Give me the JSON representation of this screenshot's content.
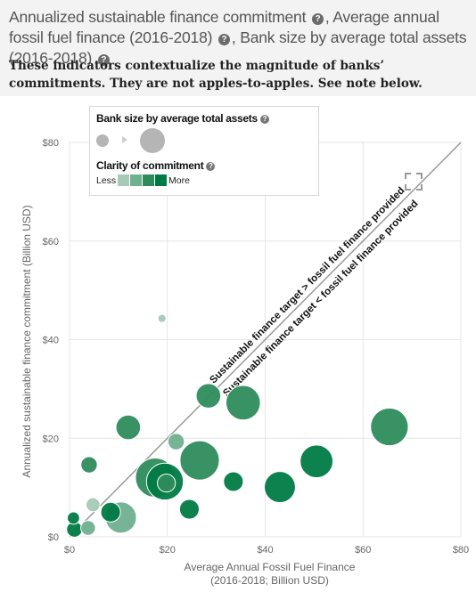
{
  "header": {
    "title_part1": "Annualized sustainable finance commitment",
    "title_part2": ", Average annual fossil fuel finance (2016-2018)",
    "title_part3": ", Bank size by average total assets (2016-2018)",
    "help_icon": "?",
    "subtitle": "These indicators contextualize the magnitude of banks’ commitments. They are not apples-to-apples. See note below."
  },
  "legend": {
    "size_title": "Bank size by average total assets",
    "clarity_title": "Clarity of commitment",
    "clarity_low": "Less",
    "clarity_high": "More",
    "clarity_colors": [
      "#a7c9b7",
      "#6fb08f",
      "#2e8c5c",
      "#007a45"
    ]
  },
  "colors": {
    "gridline": "#e6e6e6",
    "diagonal": "#9a9a9a",
    "bubble_border": "#ffffff"
  },
  "chart_data": {
    "type": "scatter",
    "xlabel": "Average Annual Fossil Fuel Finance\n(2016-2018; Billion USD)",
    "ylabel": "Annualized sustainable finance commitment (Billion USD)",
    "xlim": [
      0,
      80
    ],
    "ylim": [
      0,
      80
    ],
    "xticks": [
      "$0",
      "$20",
      "$40",
      "$60",
      "$80"
    ],
    "yticks": [
      "$0",
      "$20",
      "$40",
      "$60",
      "$80"
    ],
    "grid": true,
    "reference_line": {
      "from": [
        0,
        0
      ],
      "to": [
        80,
        80
      ],
      "label_above": "Sustainable finance target > fossil fuel finance provided",
      "label_below": "Sustainable finance target < fossil fuel finance provided"
    },
    "points": [
      {
        "x": 18.9,
        "y": 44.3,
        "size": 1.0,
        "clarity": 0
      },
      {
        "x": 28.4,
        "y": 28.6,
        "size": 3.0,
        "clarity": 2
      },
      {
        "x": 35.5,
        "y": 27.2,
        "size": 4.2,
        "clarity": 2
      },
      {
        "x": 65.4,
        "y": 22.3,
        "size": 4.6,
        "clarity": 2
      },
      {
        "x": 12.0,
        "y": 22.2,
        "size": 3.0,
        "clarity": 2
      },
      {
        "x": 21.8,
        "y": 19.3,
        "size": 2.0,
        "clarity": 1
      },
      {
        "x": 26.6,
        "y": 15.5,
        "size": 4.8,
        "clarity": 2
      },
      {
        "x": 50.5,
        "y": 15.3,
        "size": 4.0,
        "clarity": 3
      },
      {
        "x": 4.0,
        "y": 14.6,
        "size": 2.0,
        "clarity": 2
      },
      {
        "x": 17.5,
        "y": 12.0,
        "size": 4.8,
        "clarity": 2
      },
      {
        "x": 19.5,
        "y": 11.2,
        "size": 4.5,
        "clarity": 3
      },
      {
        "x": 33.5,
        "y": 11.2,
        "size": 2.4,
        "clarity": 3
      },
      {
        "x": 19.8,
        "y": 10.9,
        "size": 2.2,
        "clarity": 2
      },
      {
        "x": 43.0,
        "y": 10.1,
        "size": 3.8,
        "clarity": 3
      },
      {
        "x": 4.8,
        "y": 6.5,
        "size": 1.7,
        "clarity": 0
      },
      {
        "x": 24.5,
        "y": 5.6,
        "size": 2.4,
        "clarity": 3
      },
      {
        "x": 8.4,
        "y": 5.0,
        "size": 2.4,
        "clarity": 3
      },
      {
        "x": 10.5,
        "y": 3.9,
        "size": 3.8,
        "clarity": 1
      },
      {
        "x": 0.8,
        "y": 3.8,
        "size": 1.5,
        "clarity": 3
      },
      {
        "x": 3.8,
        "y": 1.8,
        "size": 1.8,
        "clarity": 1
      },
      {
        "x": 1.0,
        "y": 1.5,
        "size": 1.9,
        "clarity": 3
      }
    ]
  }
}
